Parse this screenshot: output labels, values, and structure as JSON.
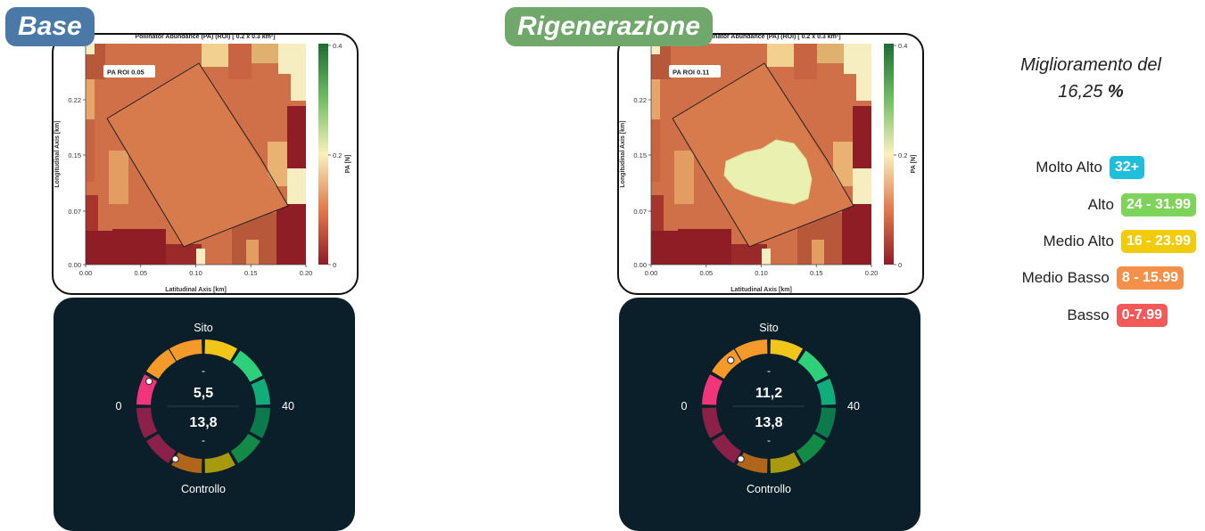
{
  "panels": [
    {
      "tag_label": "Base",
      "tag_color": "#4a79a8",
      "map": {
        "title": "Pollinator Abundance (PA) (ROI) [ 0.2 x 0.3 km²]",
        "roi_label": "PA ROI 0.05",
        "xlabel": "Latitudinal Axis [km]",
        "ylabel": "Longitudinal Axis [km]",
        "x_ticks": [
          "0.00",
          "0.05",
          "0.10",
          "0.15",
          "0.20"
        ],
        "y_ticks": [
          "0.00",
          "0.07",
          "0.15",
          "0.22"
        ],
        "colorbar_label": "PA [N]",
        "colorbar_ticks": [
          "0.4",
          "0.2",
          "0"
        ],
        "has_green_patch": false
      },
      "gauge": {
        "top_label": "Sito",
        "bottom_label": "Controllo",
        "min_label": "0",
        "max_label": "40",
        "dash_top": "-",
        "dash_bottom": "-",
        "site_value_text": "5,5",
        "control_value_text": "13,8",
        "site_value": 5.5,
        "control_value": 13.8
      }
    },
    {
      "tag_label": "Rigenerazione",
      "tag_color": "#6fa86a",
      "map": {
        "title": "Pollinator Abundance (PA) (ROI) [ 0.2 x 0.3 km²]",
        "roi_label": "PA ROI 0.11",
        "xlabel": "Latitudinal Axis [km]",
        "ylabel": "Longitudinal Axis [km]",
        "x_ticks": [
          "0.00",
          "0.05",
          "0.10",
          "0.15",
          "0.20"
        ],
        "y_ticks": [
          "0.00",
          "0.07",
          "0.15",
          "0.22"
        ],
        "colorbar_label": "PA [N]",
        "colorbar_ticks": [
          "0.4",
          "0.2",
          "0"
        ],
        "has_green_patch": true
      },
      "gauge": {
        "top_label": "Sito",
        "bottom_label": "Controllo",
        "min_label": "0",
        "max_label": "40",
        "dash_top": "-",
        "dash_bottom": "-",
        "site_value_text": "11,2",
        "control_value_text": "13,8",
        "site_value": 11.2,
        "control_value": 13.8
      }
    }
  ],
  "improvement": {
    "line1": "Miglioramento del",
    "value": "16,25",
    "unit": "%"
  },
  "legend": [
    {
      "label": "Molto Alto",
      "range": "32+",
      "color": "#1fbfdc"
    },
    {
      "label": "Alto",
      "range": "24 - 31.99",
      "color": "#7ed45a"
    },
    {
      "label": "Medio Alto",
      "range": "16 - 23.99",
      "color": "#f2cc0c"
    },
    {
      "label": "Medio Basso",
      "range": "8 - 15.99",
      "color": "#f5904a"
    },
    {
      "label": "Basso",
      "range": "0-7.99",
      "color": "#f25a5a"
    }
  ],
  "chart_data": [
    {
      "type": "heatmap",
      "title": "Pollinator Abundance (PA) (ROI) [ 0.2 x 0.3 km²]",
      "xlabel": "Latitudinal Axis [km]",
      "ylabel": "Longitudinal Axis [km]",
      "xlim": [
        0,
        0.2
      ],
      "ylim": [
        0,
        0.3
      ],
      "colorbar": {
        "label": "PA [N]",
        "range": [
          0,
          0.4
        ]
      },
      "annotation": "PA ROI 0.05"
    },
    {
      "type": "heatmap",
      "title": "Pollinator Abundance (PA) (ROI) [ 0.2 x 0.3 km²]",
      "xlabel": "Latitudinal Axis [km]",
      "ylabel": "Longitudinal Axis [km]",
      "xlim": [
        0,
        0.2
      ],
      "ylim": [
        0,
        0.3
      ],
      "colorbar": {
        "label": "PA [N]",
        "range": [
          0,
          0.4
        ]
      },
      "annotation": "PA ROI 0.11"
    },
    {
      "type": "gauge",
      "range": [
        0,
        40
      ],
      "series": [
        {
          "name": "Sito",
          "value": 5.5
        },
        {
          "name": "Controllo",
          "value": 13.8
        }
      ]
    },
    {
      "type": "gauge",
      "range": [
        0,
        40
      ],
      "series": [
        {
          "name": "Sito",
          "value": 11.2
        },
        {
          "name": "Controllo",
          "value": 13.8
        }
      ]
    }
  ]
}
